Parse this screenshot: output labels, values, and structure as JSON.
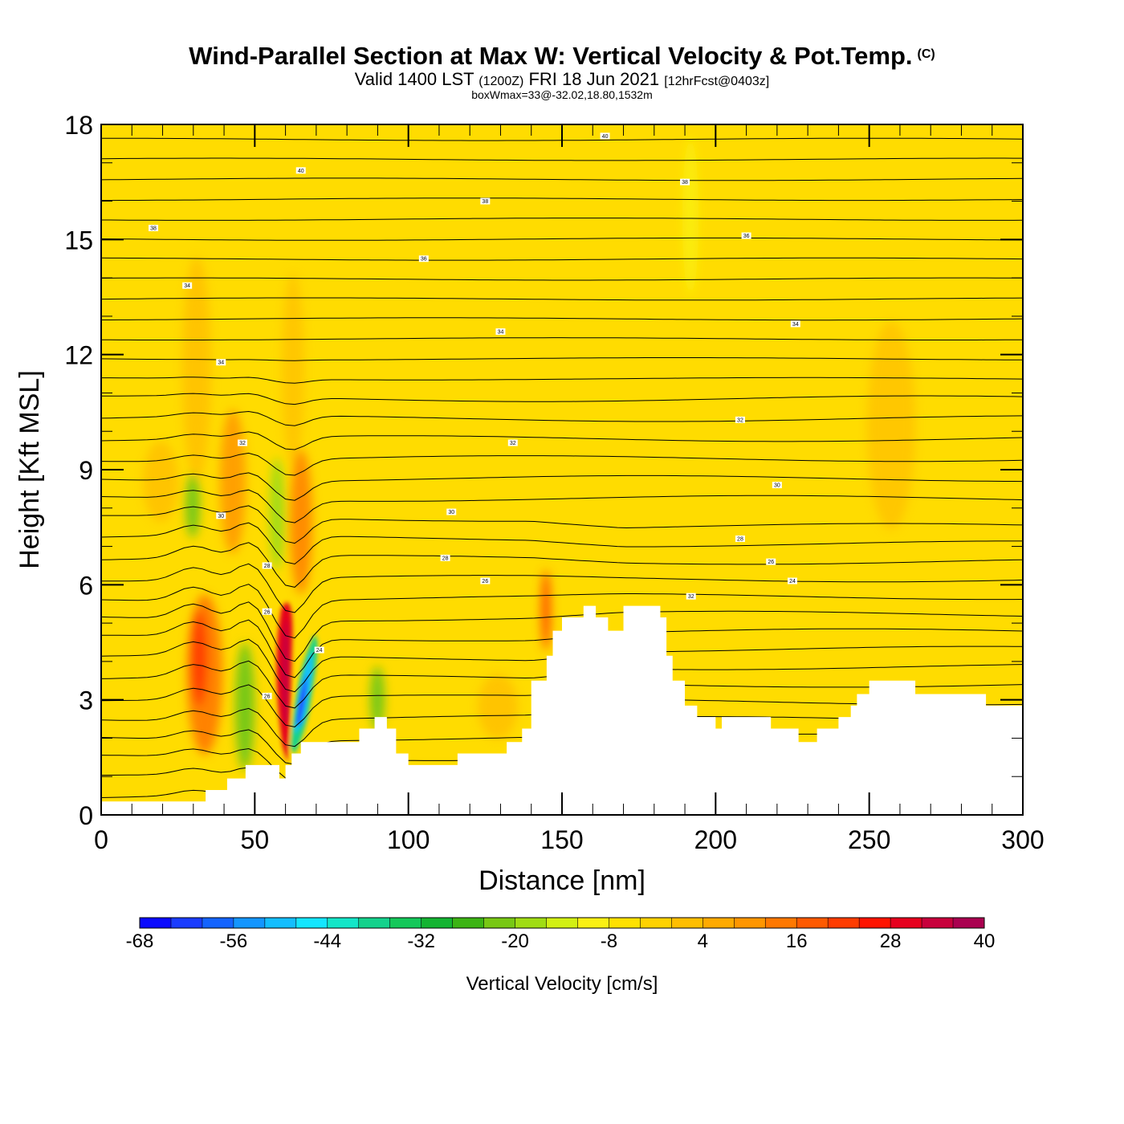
{
  "chart_data": {
    "type": "heatmap",
    "title": "Wind-Parallel Section at Max W: Vertical Velocity & Pot.Temp.",
    "copyright": "(C)",
    "subtitle_main": "Valid 1400 LST",
    "subtitle_utc": "(1200Z)",
    "subtitle_date": "FRI 18 Jun 2021",
    "subtitle_fcst": "[12hrFcst@0403z]",
    "subsubtitle": "boxWmax=33@-32.02,18.80,1532m",
    "xlabel": "Distance [nm]",
    "ylabel": "Height [Kft MSL]",
    "xlim": [
      0,
      300
    ],
    "ylim": [
      0,
      18
    ],
    "xticks": [
      0,
      50,
      100,
      150,
      200,
      250,
      300
    ],
    "yticks": [
      0,
      3,
      6,
      9,
      12,
      15,
      18
    ],
    "xtick_labels": [
      "0",
      "50",
      "100",
      "150",
      "200",
      "250",
      "300"
    ],
    "ytick_labels": [
      "0",
      "3",
      "6",
      "9",
      "12",
      "15",
      "18"
    ],
    "colorbar": {
      "title": "Vertical Velocity [cm/s]",
      "min": -68,
      "max": 40,
      "step": 4,
      "labels": [
        "-68",
        "-56",
        "-44",
        "-32",
        "-20",
        "-8",
        "4",
        "16",
        "28",
        "40"
      ],
      "colors": [
        "#0a0aff",
        "#1a3cff",
        "#1464ff",
        "#1496ff",
        "#14beff",
        "#14e6ff",
        "#14e6c8",
        "#14d28c",
        "#14c85a",
        "#14b432",
        "#3cb414",
        "#78c814",
        "#a0dc14",
        "#d2f014",
        "#faf014",
        "#ffe100",
        "#ffd200",
        "#ffbe00",
        "#ffaa00",
        "#ff9600",
        "#ff7800",
        "#ff5a00",
        "#ff3c00",
        "#ff1400",
        "#e6001e",
        "#c8003c",
        "#aa0050"
      ]
    },
    "terrain_profile": [
      [
        0,
        0.35
      ],
      [
        34,
        0.35
      ],
      [
        34,
        0.65
      ],
      [
        41,
        0.65
      ],
      [
        41,
        0.95
      ],
      [
        47,
        0.95
      ],
      [
        47,
        1.3
      ],
      [
        58,
        1.3
      ],
      [
        58,
        0.95
      ],
      [
        60,
        0.95
      ],
      [
        60,
        1.3
      ],
      [
        62,
        1.3
      ],
      [
        62,
        1.6
      ],
      [
        65,
        1.6
      ],
      [
        65,
        1.9
      ],
      [
        84,
        1.9
      ],
      [
        84,
        2.25
      ],
      [
        89,
        2.25
      ],
      [
        89,
        2.55
      ],
      [
        93,
        2.55
      ],
      [
        93,
        2.25
      ],
      [
        96,
        2.25
      ],
      [
        96,
        1.6
      ],
      [
        100,
        1.6
      ],
      [
        100,
        1.3
      ],
      [
        116,
        1.3
      ],
      [
        116,
        1.6
      ],
      [
        132,
        1.6
      ],
      [
        132,
        1.9
      ],
      [
        137,
        1.9
      ],
      [
        137,
        2.25
      ],
      [
        140,
        2.25
      ],
      [
        140,
        3.5
      ],
      [
        145,
        3.5
      ],
      [
        145,
        4.15
      ],
      [
        147,
        4.15
      ],
      [
        147,
        4.8
      ],
      [
        150,
        4.8
      ],
      [
        150,
        5.15
      ],
      [
        157,
        5.15
      ],
      [
        157,
        5.45
      ],
      [
        161,
        5.45
      ],
      [
        161,
        5.15
      ],
      [
        165,
        5.15
      ],
      [
        165,
        4.8
      ],
      [
        170,
        4.8
      ],
      [
        170,
        5.45
      ],
      [
        182,
        5.45
      ],
      [
        182,
        5.15
      ],
      [
        184,
        5.15
      ],
      [
        184,
        4.15
      ],
      [
        186,
        4.15
      ],
      [
        186,
        3.5
      ],
      [
        190,
        3.5
      ],
      [
        190,
        2.85
      ],
      [
        194,
        2.85
      ],
      [
        194,
        2.55
      ],
      [
        200,
        2.55
      ],
      [
        200,
        2.25
      ],
      [
        202,
        2.25
      ],
      [
        202,
        2.55
      ],
      [
        218,
        2.55
      ],
      [
        218,
        2.25
      ],
      [
        227,
        2.25
      ],
      [
        227,
        1.9
      ],
      [
        233,
        1.9
      ],
      [
        233,
        2.25
      ],
      [
        240,
        2.25
      ],
      [
        240,
        2.55
      ],
      [
        244,
        2.55
      ],
      [
        244,
        2.85
      ],
      [
        246,
        2.85
      ],
      [
        246,
        3.15
      ],
      [
        250,
        3.15
      ],
      [
        250,
        3.5
      ],
      [
        265,
        3.5
      ],
      [
        265,
        3.15
      ],
      [
        288,
        3.15
      ],
      [
        288,
        2.85
      ],
      [
        300,
        2.85
      ]
    ],
    "contour_labels": [
      {
        "text": "40",
        "x": 65,
        "y": 16.8
      },
      {
        "text": "40",
        "x": 164,
        "y": 17.7
      },
      {
        "text": "38",
        "x": 17,
        "y": 15.3
      },
      {
        "text": "38",
        "x": 125,
        "y": 16.0
      },
      {
        "text": "38",
        "x": 190,
        "y": 16.5
      },
      {
        "text": "36",
        "x": 210,
        "y": 15.1
      },
      {
        "text": "36",
        "x": 105,
        "y": 14.5
      },
      {
        "text": "34",
        "x": 28,
        "y": 13.8
      },
      {
        "text": "34",
        "x": 130,
        "y": 12.6
      },
      {
        "text": "34",
        "x": 226,
        "y": 12.8
      },
      {
        "text": "34",
        "x": 39,
        "y": 11.8
      },
      {
        "text": "32",
        "x": 46,
        "y": 9.7
      },
      {
        "text": "32",
        "x": 134,
        "y": 9.7
      },
      {
        "text": "32",
        "x": 208,
        "y": 10.3
      },
      {
        "text": "30",
        "x": 39,
        "y": 7.8
      },
      {
        "text": "30",
        "x": 114,
        "y": 7.9
      },
      {
        "text": "30",
        "x": 220,
        "y": 8.6
      },
      {
        "text": "28",
        "x": 54,
        "y": 6.5
      },
      {
        "text": "28",
        "x": 112,
        "y": 6.7
      },
      {
        "text": "28",
        "x": 208,
        "y": 7.2
      },
      {
        "text": "26",
        "x": 54,
        "y": 5.3
      },
      {
        "text": "26",
        "x": 125,
        "y": 6.1
      },
      {
        "text": "26",
        "x": 218,
        "y": 6.6
      },
      {
        "text": "24",
        "x": 71,
        "y": 4.3
      },
      {
        "text": "24",
        "x": 225,
        "y": 6.1
      },
      {
        "text": "26",
        "x": 54,
        "y": 3.1
      },
      {
        "text": "32",
        "x": 192,
        "y": 5.7
      }
    ]
  }
}
